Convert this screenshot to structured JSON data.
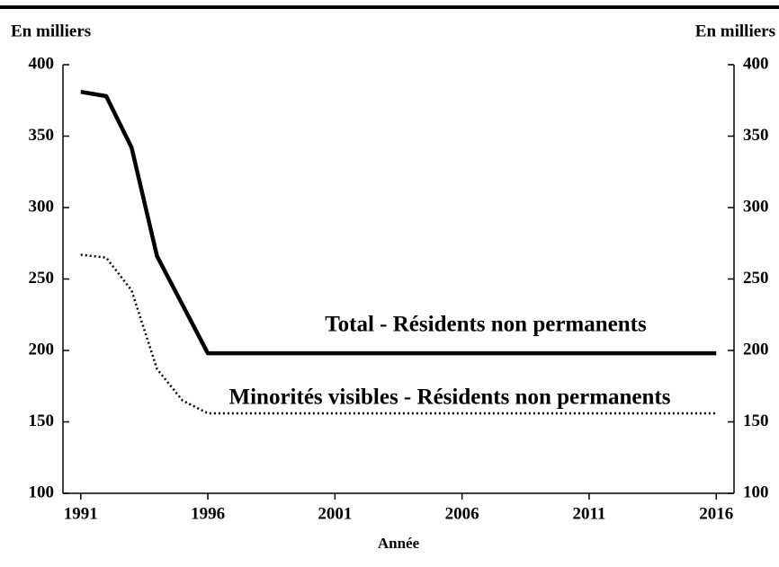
{
  "chart_data": {
    "type": "line",
    "ylabel": "En milliers",
    "y2label": "En milliers",
    "xlabel": "Année",
    "x": [
      1991,
      1992,
      1993,
      1994,
      1995,
      1996,
      1997,
      1998,
      1999,
      2000,
      2001,
      2002,
      2003,
      2004,
      2005,
      2006,
      2007,
      2008,
      2009,
      2010,
      2011,
      2012,
      2013,
      2014,
      2015,
      2016
    ],
    "series": [
      {
        "name": "Total - Résidents non permanents",
        "color": "#000000",
        "dash": "solid",
        "values": [
          381,
          378,
          342,
          266,
          232,
          198,
          198,
          198,
          198,
          198,
          198,
          198,
          198,
          198,
          198,
          198,
          198,
          198,
          198,
          198,
          198,
          198,
          198,
          198,
          198,
          198
        ]
      },
      {
        "name": "Minorités visibles - Résidents non permanents",
        "color": "#000000",
        "dash": "dotted",
        "values": [
          267,
          265,
          242,
          187,
          165,
          156,
          156,
          156,
          156,
          156,
          156,
          156,
          156,
          156,
          156,
          156,
          156,
          156,
          156,
          156,
          156,
          156,
          156,
          156,
          156,
          156
        ]
      }
    ],
    "xlim": [
      1990.3,
      2016.7
    ],
    "xticks": [
      1991,
      1996,
      2001,
      2006,
      2011,
      2016
    ],
    "ylim": [
      100,
      400
    ],
    "yticks": [
      100,
      150,
      200,
      250,
      300,
      350,
      400
    ],
    "y2lim": [
      100,
      400
    ],
    "y2ticks": [
      100,
      150,
      200,
      250,
      300,
      350,
      400
    ]
  }
}
